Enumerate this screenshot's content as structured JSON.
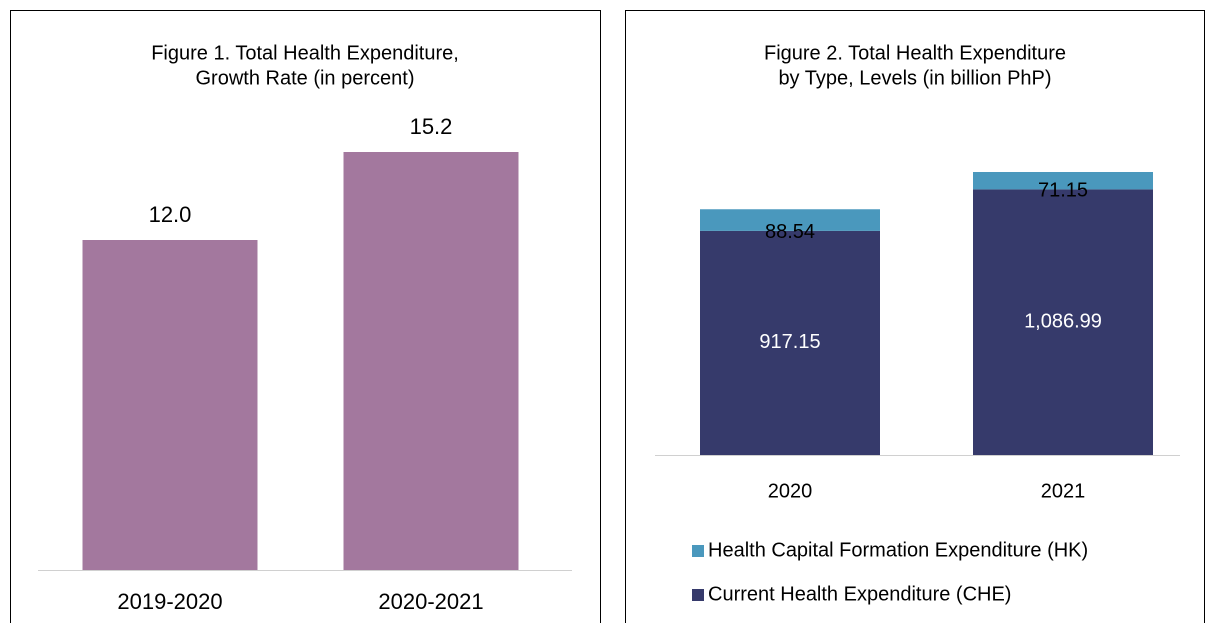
{
  "chart_data": [
    {
      "type": "bar",
      "title": [
        "Figure 1. Total Health Expenditure,",
        "Growth Rate (in percent)"
      ],
      "categories": [
        "2019-2020",
        "2020-2021"
      ],
      "values": [
        12.0,
        15.2
      ],
      "value_labels": [
        "12.0",
        "15.2"
      ],
      "color": "#a3789e"
    },
    {
      "type": "bar",
      "stacked": true,
      "title": [
        "Figure 2. Total Health Expenditure",
        "by Type, Levels (in billion PhP)"
      ],
      "categories": [
        "2020",
        "2021"
      ],
      "series": [
        {
          "name": "Current Health Expenditure (CHE)",
          "color": "#363a6b",
          "values": [
            917.15,
            1086.99
          ],
          "value_labels": [
            "917.15",
            "1,086.99"
          ]
        },
        {
          "name": "Health Capital Formation Expenditure (HK)",
          "color": "#4a98bd",
          "values": [
            88.54,
            71.15
          ]
        }
      ]
    }
  ]
}
